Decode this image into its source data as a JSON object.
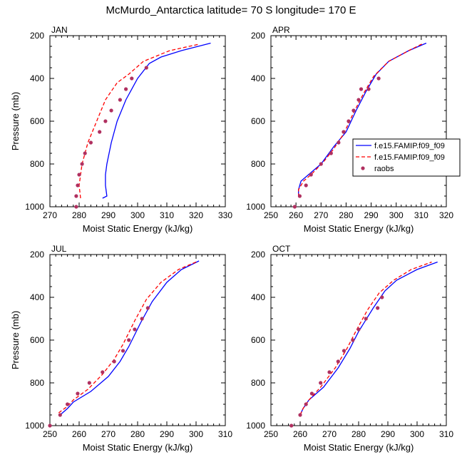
{
  "title": "McMurdo_Antarctica  latitude= 70 S longitude= 170 E",
  "colors": {
    "model1": "#0000ff",
    "model2": "#ff0000",
    "raobs": "#b03060",
    "axis": "#000000"
  },
  "chart_data": [
    {
      "type": "line",
      "panel_label": "JAN",
      "xlabel": "Moist Static Energy (kJ/kg)",
      "ylabel": "Pressure (mb)",
      "xlim": [
        270,
        330
      ],
      "ylim": [
        1000,
        200
      ],
      "y_reversed": true,
      "xticks": [
        "270",
        "280",
        "290",
        "300",
        "310",
        "320",
        "330"
      ],
      "yticks": [
        "200",
        "400",
        "600",
        "800",
        "1000"
      ],
      "series": [
        {
          "style": "solid-line",
          "points": [
            [
              288,
              960
            ],
            [
              289.5,
              950
            ],
            [
              289,
              900
            ],
            [
              289,
              850
            ],
            [
              289.5,
              800
            ],
            [
              291,
              700
            ],
            [
              293,
              600
            ],
            [
              296,
              500
            ],
            [
              300,
              400
            ],
            [
              304,
              330
            ],
            [
              308,
              300
            ],
            [
              315,
              270
            ],
            [
              325,
              235
            ]
          ]
        },
        {
          "style": "dashed-line",
          "points": [
            [
              280.5,
              960
            ],
            [
              280,
              900
            ],
            [
              281,
              800
            ],
            [
              283,
              700
            ],
            [
              286,
              600
            ],
            [
              289,
              500
            ],
            [
              293,
              420
            ],
            [
              297,
              380
            ],
            [
              302,
              320
            ],
            [
              311,
              270
            ],
            [
              321,
              240
            ]
          ]
        },
        {
          "style": "markers",
          "points": [
            [
              279,
              1000
            ],
            [
              279,
              950
            ],
            [
              279.5,
              900
            ],
            [
              280,
              850
            ],
            [
              281,
              800
            ],
            [
              282,
              750
            ],
            [
              284,
              700
            ],
            [
              287,
              650
            ],
            [
              289,
              600
            ],
            [
              291,
              550
            ],
            [
              294,
              500
            ],
            [
              296,
              450
            ],
            [
              298,
              400
            ],
            [
              303,
              350
            ]
          ]
        }
      ]
    },
    {
      "type": "line",
      "panel_label": "APR",
      "xlabel": "Moist Static Energy (kJ/kg)",
      "ylabel": "",
      "xlim": [
        250,
        320
      ],
      "ylim": [
        1000,
        200
      ],
      "y_reversed": true,
      "xticks": [
        "250",
        "260",
        "270",
        "280",
        "290",
        "300",
        "310",
        "320"
      ],
      "yticks": [
        "200",
        "400",
        "600",
        "800",
        "1000"
      ],
      "legend": {
        "position": "right",
        "entries": [
          {
            "label": "f.e15.FAMIP.f09_f09",
            "style": "solid-line"
          },
          {
            "label": "f.e15.FAMIP.f09_f09",
            "style": "dashed-line"
          },
          {
            "label": "raobs",
            "style": "markers"
          }
        ]
      },
      "series": [
        {
          "style": "solid-line",
          "points": [
            [
              261,
              955
            ],
            [
              261,
              920
            ],
            [
              262,
              880
            ],
            [
              265,
              850
            ],
            [
              270,
              800
            ],
            [
              275,
              720
            ],
            [
              280,
              650
            ],
            [
              284,
              550
            ],
            [
              288,
              460
            ],
            [
              292,
              380
            ],
            [
              297,
              320
            ],
            [
              305,
              270
            ],
            [
              312,
              235
            ]
          ]
        },
        {
          "style": "dashed-line",
          "points": [
            [
              261,
              955
            ],
            [
              261,
              920
            ],
            [
              263,
              880
            ],
            [
              266,
              850
            ],
            [
              271,
              790
            ],
            [
              275,
              730
            ],
            [
              279,
              660
            ],
            [
              283,
              560
            ],
            [
              287,
              470
            ],
            [
              291,
              390
            ],
            [
              297,
              320
            ],
            [
              305,
              270
            ],
            [
              311,
              235
            ]
          ]
        },
        {
          "style": "markers",
          "points": [
            [
              259.5,
              1000
            ],
            [
              261.5,
              950
            ],
            [
              264,
              900
            ],
            [
              266,
              850
            ],
            [
              270,
              800
            ],
            [
              274,
              750
            ],
            [
              277,
              700
            ],
            [
              279,
              650
            ],
            [
              281,
              600
            ],
            [
              283,
              550
            ],
            [
              285,
              500
            ],
            [
              286,
              450
            ],
            [
              289,
              450
            ],
            [
              293,
              400
            ]
          ]
        }
      ]
    },
    {
      "type": "line",
      "panel_label": "JUL",
      "xlabel": "Moist Static Energy (kJ/kg)",
      "ylabel": "Pressure (mb)",
      "xlim": [
        250,
        310
      ],
      "ylim": [
        1000,
        200
      ],
      "y_reversed": true,
      "xticks": [
        "250",
        "260",
        "270",
        "280",
        "290",
        "300",
        "310"
      ],
      "yticks": [
        "200",
        "400",
        "600",
        "800",
        "1000"
      ],
      "series": [
        {
          "style": "solid-line",
          "points": [
            [
              253.5,
              950
            ],
            [
              256,
              920
            ],
            [
              258,
              890
            ],
            [
              264,
              840
            ],
            [
              270,
              770
            ],
            [
              274,
              700
            ],
            [
              277,
              630
            ],
            [
              281,
              520
            ],
            [
              285,
              420
            ],
            [
              290,
              330
            ],
            [
              295,
              270
            ],
            [
              301,
              230
            ]
          ]
        },
        {
          "style": "dashed-line",
          "points": [
            [
              253,
              940
            ],
            [
              256,
              910
            ],
            [
              258,
              880
            ],
            [
              263,
              830
            ],
            [
              268,
              760
            ],
            [
              272,
              690
            ],
            [
              275,
              620
            ],
            [
              279,
              510
            ],
            [
              283,
              410
            ],
            [
              288,
              330
            ],
            [
              294,
              270
            ],
            [
              300,
              235
            ]
          ]
        },
        {
          "style": "markers",
          "points": [
            [
              250,
              1000
            ],
            [
              253.5,
              950
            ],
            [
              256,
              900
            ],
            [
              259.5,
              850
            ],
            [
              263.5,
              800
            ],
            [
              268,
              750
            ],
            [
              272,
              700
            ],
            [
              275,
              650
            ],
            [
              277,
              600
            ],
            [
              279,
              550
            ],
            [
              281.5,
              500
            ],
            [
              283.5,
              450
            ]
          ]
        }
      ]
    },
    {
      "type": "line",
      "panel_label": "OCT",
      "xlabel": "Moist Static Energy (kJ/kg)",
      "ylabel": "",
      "xlim": [
        250,
        310
      ],
      "ylim": [
        1000,
        200
      ],
      "y_reversed": true,
      "xticks": [
        "250",
        "260",
        "270",
        "280",
        "290",
        "300",
        "310"
      ],
      "yticks": [
        "200",
        "400",
        "600",
        "800",
        "1000"
      ],
      "series": [
        {
          "style": "solid-line",
          "points": [
            [
              260,
              950
            ],
            [
              261,
              920
            ],
            [
              263,
              880
            ],
            [
              268,
              820
            ],
            [
              273,
              730
            ],
            [
              277,
              640
            ],
            [
              280,
              560
            ],
            [
              285,
              450
            ],
            [
              289,
              370
            ],
            [
              293,
              320
            ],
            [
              300,
              270
            ],
            [
              307,
              235
            ]
          ]
        },
        {
          "style": "dashed-line",
          "points": [
            [
              260,
              950
            ],
            [
              261,
              920
            ],
            [
              263,
              880
            ],
            [
              267,
              820
            ],
            [
              272,
              730
            ],
            [
              276,
              640
            ],
            [
              279,
              560
            ],
            [
              283,
              460
            ],
            [
              287,
              380
            ],
            [
              292,
              320
            ],
            [
              298,
              270
            ],
            [
              305,
              235
            ]
          ]
        },
        {
          "style": "markers",
          "points": [
            [
              257,
              1000
            ],
            [
              260,
              950
            ],
            [
              262,
              900
            ],
            [
              264,
              850
            ],
            [
              267,
              800
            ],
            [
              270,
              750
            ],
            [
              273,
              700
            ],
            [
              275,
              650
            ],
            [
              278,
              600
            ],
            [
              280,
              550
            ],
            [
              282.5,
              500
            ],
            [
              286.5,
              450
            ],
            [
              288,
              400
            ]
          ]
        }
      ]
    }
  ]
}
